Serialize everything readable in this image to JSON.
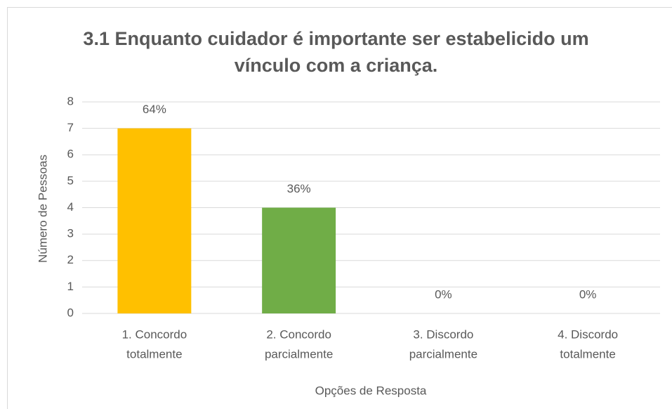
{
  "chart_data": {
    "type": "bar",
    "title": "3.1 Enquanto cuidador é importante ser estabelicido um vínculo com a criança.",
    "categories": [
      [
        "1. Concordo",
        "totalmente"
      ],
      [
        "2. Concordo",
        "parcialmente"
      ],
      [
        "3. Discordo",
        "parcialmente"
      ],
      [
        "4. Discordo",
        "totalmente"
      ]
    ],
    "values": [
      7,
      4,
      0,
      0
    ],
    "value_labels": [
      "64%",
      "36%",
      "0%",
      "0%"
    ],
    "colors": [
      "#FFC000",
      "#70AD47",
      "#70AD47",
      "#70AD47"
    ],
    "xlabel": "Opções de Resposta",
    "ylabel": "Número de Pessoas",
    "ylim": [
      0,
      8
    ],
    "yticks": [
      0,
      1,
      2,
      3,
      4,
      5,
      6,
      7,
      8
    ],
    "grid": true
  }
}
